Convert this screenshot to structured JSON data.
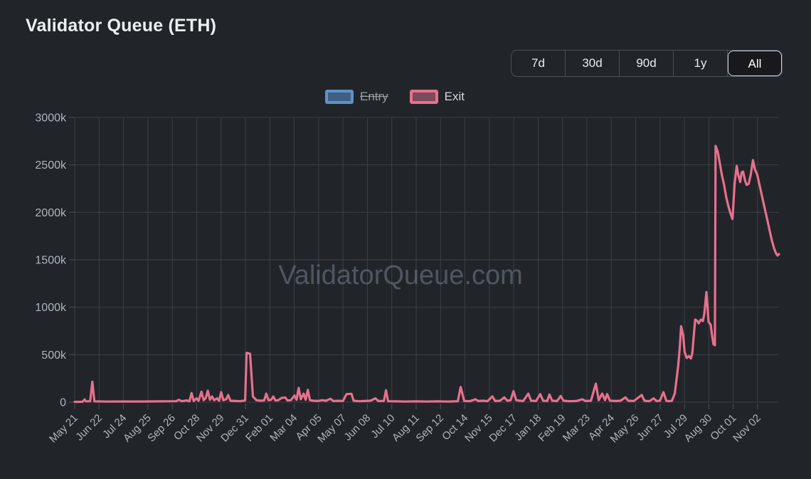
{
  "header": {
    "title": "Validator Queue (ETH)"
  },
  "range_selector": {
    "options": [
      "7d",
      "30d",
      "90d",
      "1y",
      "All"
    ],
    "selected": "All"
  },
  "legend": {
    "entry": {
      "label": "Entry",
      "disabled": true,
      "border_color": "#5E93CC",
      "fill_color": "#415F80"
    },
    "exit": {
      "label": "Exit",
      "disabled": false,
      "border_color": "#E8708E",
      "fill_color": "#7A4B5B"
    }
  },
  "watermark": "ValidatorQueue.com",
  "colors": {
    "background": "#212529",
    "title_text": "#ECEFF1",
    "axis_label": "#ADB5BD",
    "gridline": "#3A4046",
    "tick": "#495057",
    "button_border": "#495057",
    "selected_button_border": "#CED4DA",
    "exit_line": "#E8708E",
    "entry_line": "#5E93CC",
    "watermark": "#8792A5"
  },
  "chart_data": {
    "type": "line",
    "title": "Validator Queue (ETH)",
    "grid": true,
    "legend_position": "top-center",
    "x_axis": {
      "tick_labels": [
        "May 21",
        "Jun 22",
        "Jul 24",
        "Aug 25",
        "Sep 26",
        "Oct 28",
        "Nov 29",
        "Dec 31",
        "Feb 01",
        "Mar 04",
        "Apr 05",
        "May 07",
        "Jun 08",
        "Jul 10",
        "Aug 11",
        "Sep 12",
        "Oct 14",
        "Nov 15",
        "Dec 17",
        "Jan 18",
        "Feb 19",
        "Mar 23",
        "Apr 24",
        "May 26",
        "Jun 27",
        "Jul 29",
        "Aug 30",
        "Oct 01",
        "Nov 02"
      ],
      "label_rotation_deg": -45,
      "note": "x values of points are fractions of the full time axis; first tick (May 21) = 0.0, last tick (Nov 02) = 0.970, line extends to 1.0"
    },
    "y_axis": {
      "tick_labels": [
        "0",
        "500k",
        "1000k",
        "1500k",
        "2000k",
        "2500k",
        "3000k"
      ],
      "min": 0,
      "max": 3000,
      "unit": "k (thousands of ETH)"
    },
    "series": [
      {
        "name": "Entry",
        "color": "#5E93CC",
        "hidden": true,
        "points": []
      },
      {
        "name": "Exit",
        "color": "#E8708E",
        "hidden": false,
        "points": [
          [
            0,
            3
          ],
          [
            0.011,
            4
          ],
          [
            0.014,
            28
          ],
          [
            0.016,
            8
          ],
          [
            0.022,
            10
          ],
          [
            0.025,
            215
          ],
          [
            0.028,
            8
          ],
          [
            0.045,
            6
          ],
          [
            0.071,
            7
          ],
          [
            0.096,
            7
          ],
          [
            0.121,
            8
          ],
          [
            0.144,
            10
          ],
          [
            0.148,
            25
          ],
          [
            0.152,
            10
          ],
          [
            0.159,
            18
          ],
          [
            0.163,
            10
          ],
          [
            0.166,
            95
          ],
          [
            0.169,
            12
          ],
          [
            0.173,
            40
          ],
          [
            0.176,
            15
          ],
          [
            0.18,
            110
          ],
          [
            0.183,
            20
          ],
          [
            0.186,
            40
          ],
          [
            0.189,
            120
          ],
          [
            0.192,
            25
          ],
          [
            0.195,
            60
          ],
          [
            0.198,
            20
          ],
          [
            0.202,
            40
          ],
          [
            0.205,
            15
          ],
          [
            0.208,
            105
          ],
          [
            0.211,
            20
          ],
          [
            0.215,
            30
          ],
          [
            0.218,
            75
          ],
          [
            0.221,
            15
          ],
          [
            0.228,
            12
          ],
          [
            0.235,
            10
          ],
          [
            0.242,
            18
          ],
          [
            0.244,
            520
          ],
          [
            0.249,
            510
          ],
          [
            0.253,
            60
          ],
          [
            0.258,
            20
          ],
          [
            0.264,
            15
          ],
          [
            0.269,
            18
          ],
          [
            0.272,
            90
          ],
          [
            0.275,
            20
          ],
          [
            0.279,
            25
          ],
          [
            0.282,
            60
          ],
          [
            0.285,
            18
          ],
          [
            0.289,
            20
          ],
          [
            0.294,
            45
          ],
          [
            0.299,
            48
          ],
          [
            0.302,
            18
          ],
          [
            0.307,
            20
          ],
          [
            0.312,
            70
          ],
          [
            0.315,
            25
          ],
          [
            0.318,
            150
          ],
          [
            0.321,
            30
          ],
          [
            0.325,
            90
          ],
          [
            0.328,
            25
          ],
          [
            0.331,
            130
          ],
          [
            0.334,
            20
          ],
          [
            0.339,
            15
          ],
          [
            0.345,
            12
          ],
          [
            0.351,
            20
          ],
          [
            0.357,
            15
          ],
          [
            0.363,
            35
          ],
          [
            0.367,
            12
          ],
          [
            0.374,
            14
          ],
          [
            0.381,
            12
          ],
          [
            0.386,
            85
          ],
          [
            0.393,
            88
          ],
          [
            0.396,
            15
          ],
          [
            0.404,
            10
          ],
          [
            0.412,
            12
          ],
          [
            0.42,
            15
          ],
          [
            0.427,
            40
          ],
          [
            0.431,
            12
          ],
          [
            0.439,
            12
          ],
          [
            0.442,
            125
          ],
          [
            0.445,
            10
          ],
          [
            0.456,
            8
          ],
          [
            0.47,
            6
          ],
          [
            0.485,
            8
          ],
          [
            0.5,
            6
          ],
          [
            0.515,
            8
          ],
          [
            0.53,
            6
          ],
          [
            0.544,
            10
          ],
          [
            0.548,
            160
          ],
          [
            0.553,
            12
          ],
          [
            0.561,
            10
          ],
          [
            0.569,
            30
          ],
          [
            0.573,
            12
          ],
          [
            0.58,
            15
          ],
          [
            0.586,
            10
          ],
          [
            0.593,
            60
          ],
          [
            0.597,
            12
          ],
          [
            0.604,
            15
          ],
          [
            0.61,
            50
          ],
          [
            0.614,
            15
          ],
          [
            0.619,
            20
          ],
          [
            0.623,
            115
          ],
          [
            0.627,
            20
          ],
          [
            0.632,
            15
          ],
          [
            0.637,
            12
          ],
          [
            0.644,
            90
          ],
          [
            0.648,
            15
          ],
          [
            0.655,
            12
          ],
          [
            0.661,
            85
          ],
          [
            0.665,
            15
          ],
          [
            0.671,
            12
          ],
          [
            0.674,
            80
          ],
          [
            0.678,
            15
          ],
          [
            0.685,
            12
          ],
          [
            0.69,
            65
          ],
          [
            0.694,
            15
          ],
          [
            0.702,
            10
          ],
          [
            0.712,
            12
          ],
          [
            0.721,
            30
          ],
          [
            0.725,
            12
          ],
          [
            0.733,
            15
          ],
          [
            0.74,
            195
          ],
          [
            0.744,
            20
          ],
          [
            0.749,
            90
          ],
          [
            0.753,
            20
          ],
          [
            0.756,
            85
          ],
          [
            0.76,
            15
          ],
          [
            0.768,
            12
          ],
          [
            0.775,
            15
          ],
          [
            0.782,
            50
          ],
          [
            0.786,
            15
          ],
          [
            0.794,
            12
          ],
          [
            0.805,
            75
          ],
          [
            0.809,
            15
          ],
          [
            0.816,
            10
          ],
          [
            0.822,
            40
          ],
          [
            0.826,
            12
          ],
          [
            0.831,
            15
          ],
          [
            0.836,
            105
          ],
          [
            0.84,
            15
          ],
          [
            0.844,
            10
          ],
          [
            0.848,
            15
          ],
          [
            0.852,
            90
          ],
          [
            0.854,
            210
          ],
          [
            0.857,
            390
          ],
          [
            0.859,
            560
          ],
          [
            0.861,
            800
          ],
          [
            0.864,
            700
          ],
          [
            0.866,
            530
          ],
          [
            0.869,
            465
          ],
          [
            0.872,
            485
          ],
          [
            0.875,
            460
          ],
          [
            0.877,
            520
          ],
          [
            0.879,
            700
          ],
          [
            0.881,
            870
          ],
          [
            0.884,
            855
          ],
          [
            0.886,
            830
          ],
          [
            0.889,
            870
          ],
          [
            0.892,
            855
          ],
          [
            0.894,
            935
          ],
          [
            0.897,
            1160
          ],
          [
            0.9,
            845
          ],
          [
            0.903,
            815
          ],
          [
            0.905,
            700
          ],
          [
            0.907,
            610
          ],
          [
            0.909,
            600
          ],
          [
            0.91,
            2700
          ],
          [
            0.913,
            2640
          ],
          [
            0.916,
            2520
          ],
          [
            0.919,
            2390
          ],
          [
            0.922,
            2290
          ],
          [
            0.925,
            2160
          ],
          [
            0.928,
            2070
          ],
          [
            0.931,
            1990
          ],
          [
            0.934,
            1930
          ],
          [
            0.937,
            2300
          ],
          [
            0.94,
            2490
          ],
          [
            0.942,
            2400
          ],
          [
            0.945,
            2320
          ],
          [
            0.947,
            2420
          ],
          [
            0.949,
            2430
          ],
          [
            0.952,
            2330
          ],
          [
            0.954,
            2290
          ],
          [
            0.957,
            2300
          ],
          [
            0.96,
            2400
          ],
          [
            0.963,
            2550
          ],
          [
            0.966,
            2450
          ],
          [
            0.969,
            2400
          ],
          [
            0.972,
            2300
          ],
          [
            0.975,
            2200
          ],
          [
            0.978,
            2100
          ],
          [
            0.981,
            2000
          ],
          [
            0.984,
            1900
          ],
          [
            0.987,
            1800
          ],
          [
            0.99,
            1700
          ],
          [
            0.993,
            1620
          ],
          [
            0.996,
            1565
          ],
          [
            0.998,
            1545
          ],
          [
            1,
            1560
          ]
        ]
      }
    ]
  }
}
